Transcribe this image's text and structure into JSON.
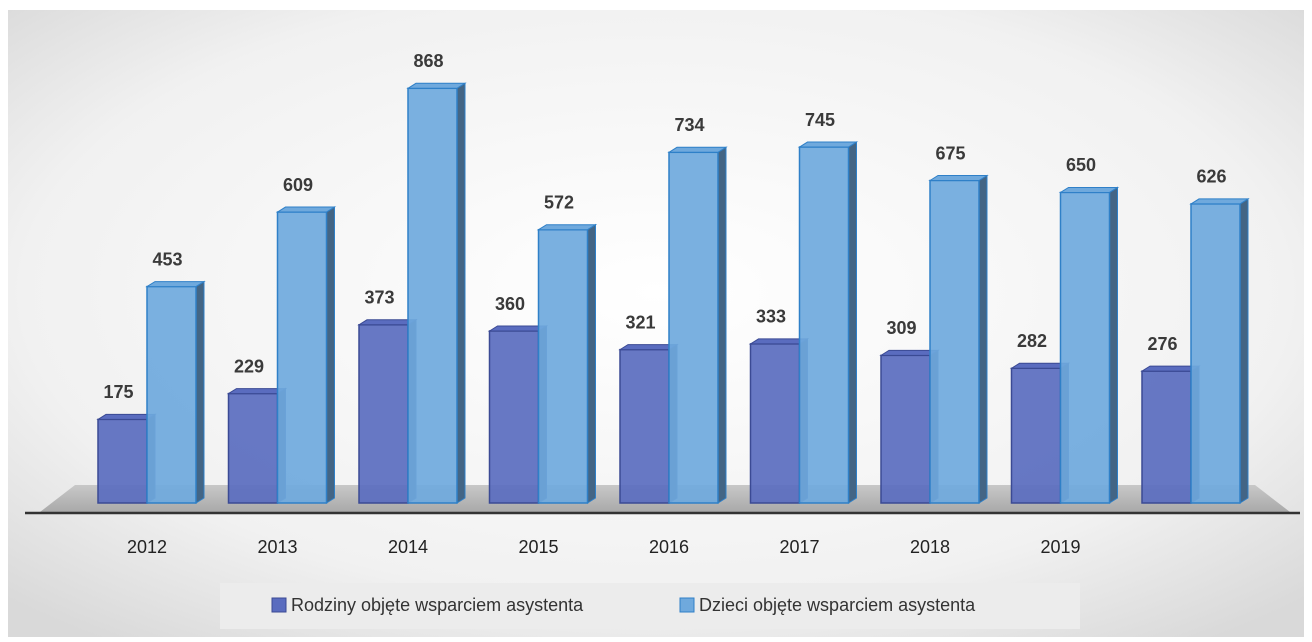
{
  "chart_data": {
    "type": "bar3d",
    "categories": [
      "2012",
      "2013",
      "2014",
      "2015",
      "2016",
      "2017",
      "2018",
      "2019",
      null
    ],
    "series": [
      {
        "name": "Rodziny objęte wsparciem asystenta",
        "color": "#5a6cbf",
        "values": [
          175,
          229,
          373,
          360,
          321,
          333,
          309,
          282,
          276
        ]
      },
      {
        "name": "Dzieci objęte wsparciem asystenta",
        "color": "#6fa9dd",
        "values": [
          453,
          609,
          868,
          572,
          734,
          745,
          675,
          650,
          626
        ]
      }
    ],
    "ylim": [
      0,
      900
    ]
  }
}
